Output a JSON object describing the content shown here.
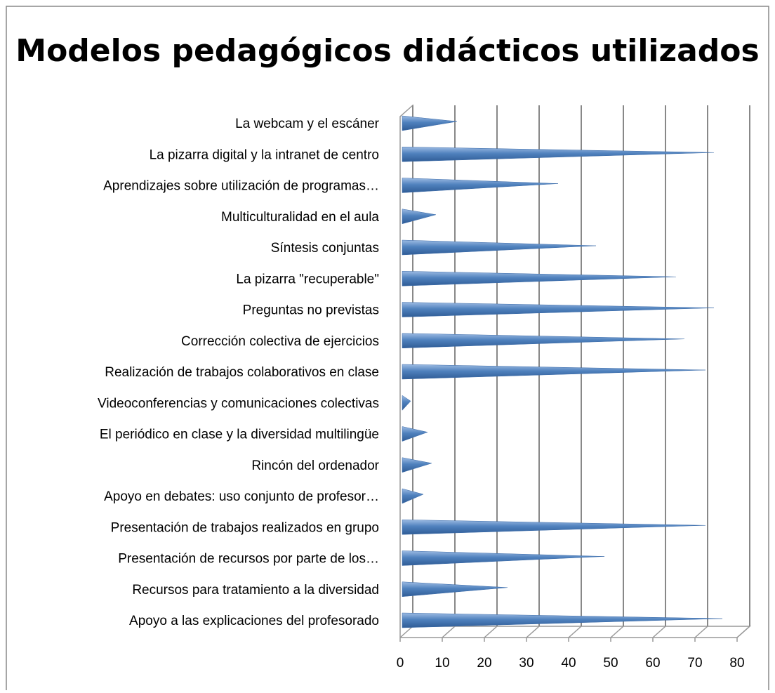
{
  "chart_data": {
    "type": "bar3d-cone",
    "orientation": "horizontal",
    "title": "Modelos pedagógicos didácticos utilizados",
    "categories": [
      "La webcam y el escáner",
      "La pizarra digital y la intranet de centro",
      "Aprendizajes sobre utilización de programas…",
      "Multiculturalidad en el aula",
      "Síntesis conjuntas",
      "La pizarra \"recuperable\"",
      "Preguntas no previstas",
      "Corrección colectiva de ejercicios",
      "Realización de trabajos colaborativos en clase",
      "Videoconferencias y comunicaciones colectivas",
      "El periódico en clase y la diversidad multilingüe",
      "Rincón del ordenador",
      "Apoyo en debates: uso conjunto de profesor…",
      "Presentación de trabajos realizados en grupo",
      "Presentación de recursos por parte de los…",
      "Recursos para tratamiento a la diversidad",
      "Apoyo a las explicaciones del profesorado"
    ],
    "values": [
      12,
      73,
      36,
      7,
      45,
      64,
      73,
      66,
      71,
      1,
      5,
      6,
      4,
      71,
      47,
      24,
      75
    ],
    "color": "#4f81bd",
    "xlim": [
      0,
      80
    ],
    "xticks": [
      0,
      10,
      20,
      30,
      40,
      50,
      60,
      70,
      80
    ],
    "grid": true
  }
}
